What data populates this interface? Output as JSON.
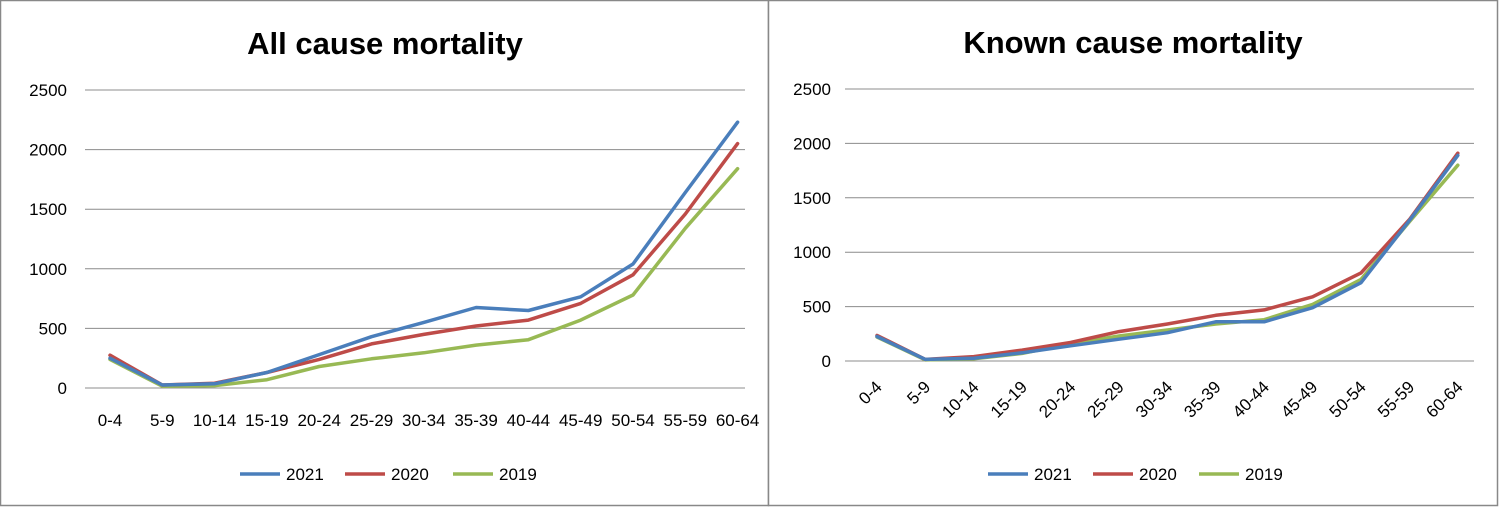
{
  "charts": [
    {
      "type": "line",
      "title": "All cause mortality",
      "categories": [
        "0-4",
        "5-9",
        "10-14",
        "15-19",
        "20-24",
        "25-29",
        "30-34",
        "35-39",
        "40-44",
        "45-49",
        "50-54",
        "55-59",
        "60-64"
      ],
      "yticks": [
        0,
        500,
        1000,
        1500,
        2000,
        2500
      ],
      "ylim": [
        0,
        2500
      ],
      "grid": true,
      "legend_position": "bottom",
      "tick_rotation": 0,
      "series": [
        {
          "name": "2021",
          "color": "#4a7ebb",
          "values": [
            250,
            25,
            35,
            130,
            280,
            430,
            550,
            675,
            650,
            765,
            1040,
            1640,
            2230
          ]
        },
        {
          "name": "2020",
          "color": "#be4b48",
          "values": [
            275,
            25,
            40,
            130,
            240,
            370,
            450,
            520,
            570,
            710,
            950,
            1460,
            2050
          ]
        },
        {
          "name": "2019",
          "color": "#98b954",
          "values": [
            240,
            15,
            20,
            70,
            180,
            245,
            295,
            360,
            405,
            570,
            780,
            1340,
            1840
          ]
        }
      ]
    },
    {
      "type": "line",
      "title": "Known cause mortality",
      "categories": [
        "0-4",
        "5-9",
        "10-14",
        "15-19",
        "20-24",
        "25-29",
        "30-34",
        "35-39",
        "40-44",
        "45-49",
        "50-54",
        "55-59",
        "60-64"
      ],
      "yticks": [
        0,
        500,
        1000,
        1500,
        2000,
        2500
      ],
      "ylim": [
        0,
        2500
      ],
      "grid": true,
      "legend_position": "bottom",
      "tick_rotation": -45,
      "series": [
        {
          "name": "2021",
          "color": "#4a7ebb",
          "values": [
            225,
            15,
            25,
            75,
            140,
            200,
            260,
            360,
            360,
            490,
            720,
            1290,
            1890
          ]
        },
        {
          "name": "2020",
          "color": "#be4b48",
          "values": [
            235,
            15,
            40,
            100,
            170,
            270,
            340,
            420,
            470,
            590,
            810,
            1300,
            1910
          ]
        },
        {
          "name": "2019",
          "color": "#98b954",
          "values": [
            220,
            10,
            20,
            70,
            160,
            230,
            285,
            340,
            380,
            520,
            750,
            1280,
            1800
          ]
        }
      ]
    }
  ]
}
